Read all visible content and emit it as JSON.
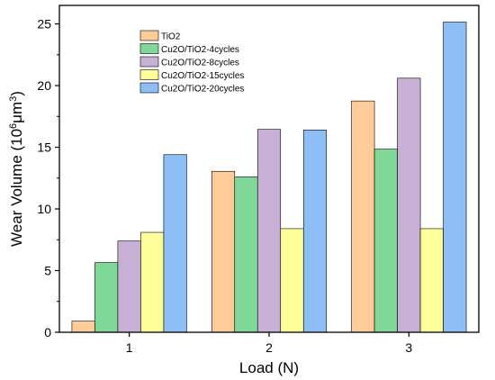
{
  "chart_data": {
    "type": "bar",
    "categories": [
      "1",
      "2",
      "3"
    ],
    "xlabel": "Load (N)",
    "ylabel": "Wear Volume (10⁶μm³)",
    "ylabel_parts": {
      "pre": "Wear Volume (10",
      "sup1": "6",
      "mid": "μm",
      "sup2": "3",
      "post": ")"
    },
    "ylim": [
      0,
      26.5
    ],
    "yticks": [
      0,
      5,
      10,
      15,
      20,
      25
    ],
    "legend_position": "top-left",
    "grid": false,
    "series": [
      {
        "name": "TiO2",
        "color": "#FFCC99",
        "values": [
          0.9,
          13.05,
          18.75
        ]
      },
      {
        "name": "Cu2O/TiO2-4cycles",
        "color": "#7FD897",
        "values": [
          5.65,
          12.6,
          14.85
        ]
      },
      {
        "name": "Cu2O/TiO2-8cycles",
        "color": "#C8AFD6",
        "values": [
          7.4,
          16.45,
          20.6
        ]
      },
      {
        "name": "Cu2O/TiO2-15cycles",
        "color": "#FFFF99",
        "values": [
          8.1,
          8.4,
          8.4
        ]
      },
      {
        "name": "Cu2O/TiO2-20cycles",
        "color": "#8DBEF5",
        "values": [
          14.4,
          16.4,
          25.15
        ]
      }
    ]
  }
}
